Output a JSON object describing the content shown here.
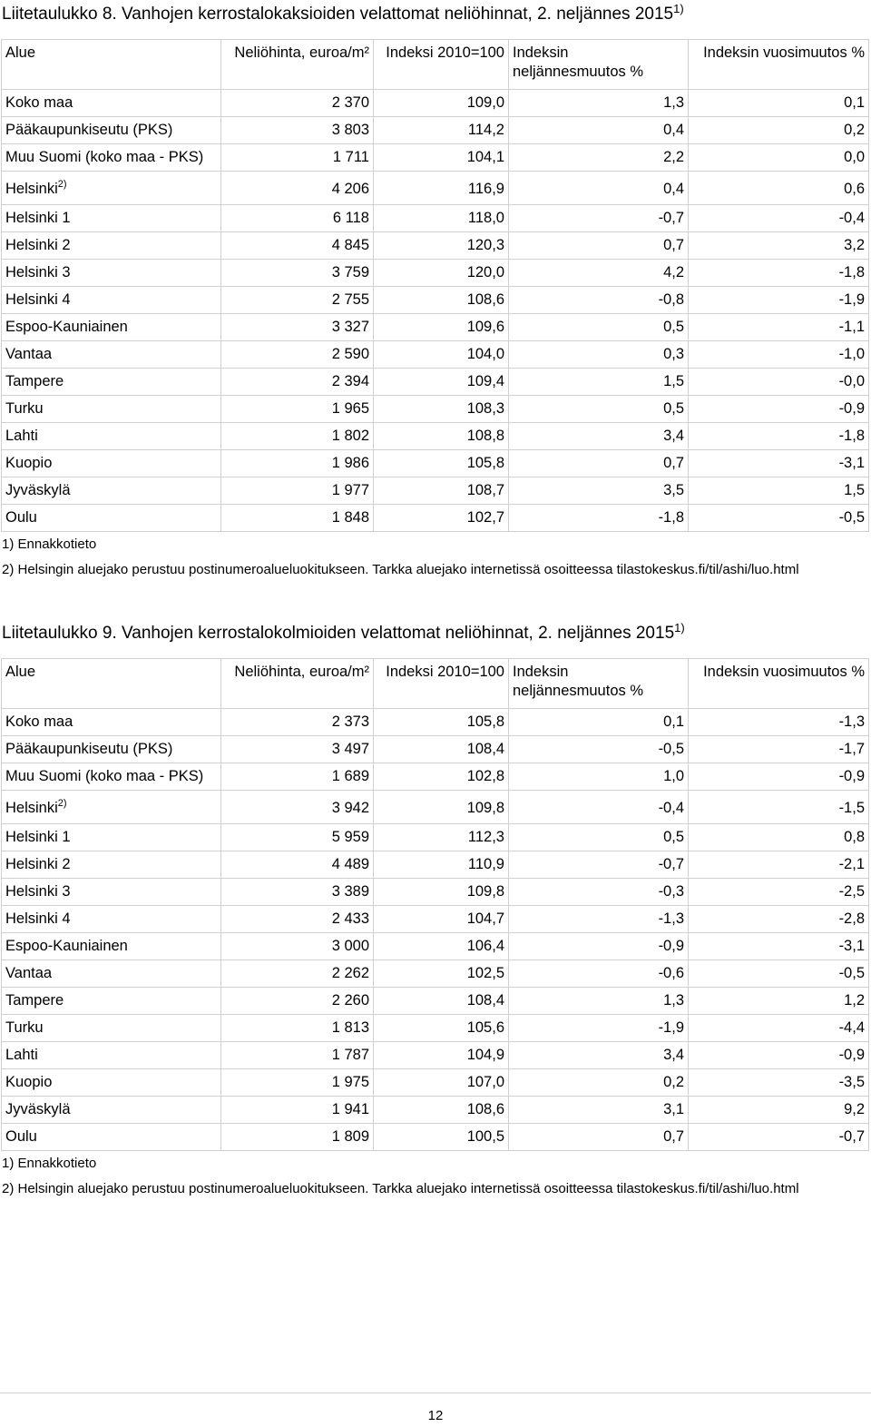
{
  "tables": [
    {
      "title": "Liitetaulukko 8. Vanhojen kerrostalokaksioiden velattomat neliöhinnat, 2. neljännes 2015",
      "title_sup": "1)",
      "headers": [
        "Alue",
        "Neliöhinta, euroa/m²",
        "Indeksi 2010=100",
        "Indeksin neljännesmuutos %",
        "Indeksin vuosimuutos %"
      ],
      "rows": [
        {
          "area": "Koko maa",
          "price": "2 370",
          "index": "109,0",
          "qchange": "1,3",
          "ychange": "0,1"
        },
        {
          "area": "Pääkaupunkiseutu (PKS)",
          "price": "3 803",
          "index": "114,2",
          "qchange": "0,4",
          "ychange": "0,2"
        },
        {
          "area": "Muu Suomi (koko maa - PKS)",
          "price": "1 711",
          "index": "104,1",
          "qchange": "2,2",
          "ychange": "0,0"
        },
        {
          "area": "Helsinki",
          "sup": "2)",
          "price": "4 206",
          "index": "116,9",
          "qchange": "0,4",
          "ychange": "0,6"
        },
        {
          "area": "Helsinki 1",
          "price": "6 118",
          "index": "118,0",
          "qchange": "-0,7",
          "ychange": "-0,4"
        },
        {
          "area": "Helsinki 2",
          "price": "4 845",
          "index": "120,3",
          "qchange": "0,7",
          "ychange": "3,2"
        },
        {
          "area": "Helsinki 3",
          "price": "3 759",
          "index": "120,0",
          "qchange": "4,2",
          "ychange": "-1,8"
        },
        {
          "area": "Helsinki 4",
          "price": "2 755",
          "index": "108,6",
          "qchange": "-0,8",
          "ychange": "-1,9"
        },
        {
          "area": "Espoo-Kauniainen",
          "price": "3 327",
          "index": "109,6",
          "qchange": "0,5",
          "ychange": "-1,1"
        },
        {
          "area": "Vantaa",
          "price": "2 590",
          "index": "104,0",
          "qchange": "0,3",
          "ychange": "-1,0"
        },
        {
          "area": "Tampere",
          "price": "2 394",
          "index": "109,4",
          "qchange": "1,5",
          "ychange": "-0,0"
        },
        {
          "area": "Turku",
          "price": "1 965",
          "index": "108,3",
          "qchange": "0,5",
          "ychange": "-0,9"
        },
        {
          "area": "Lahti",
          "price": "1 802",
          "index": "108,8",
          "qchange": "3,4",
          "ychange": "-1,8"
        },
        {
          "area": "Kuopio",
          "price": "1 986",
          "index": "105,8",
          "qchange": "0,7",
          "ychange": "-3,1"
        },
        {
          "area": "Jyväskylä",
          "price": "1 977",
          "index": "108,7",
          "qchange": "3,5",
          "ychange": "1,5"
        },
        {
          "area": "Oulu",
          "price": "1 848",
          "index": "102,7",
          "qchange": "-1,8",
          "ychange": "-0,5"
        }
      ],
      "note1": "1) Ennakkotieto",
      "note2": "2) Helsingin aluejako perustuu postinumeroalueluokitukseen. Tarkka aluejako internetissä osoitteessa tilastokeskus.fi/til/ashi/luo.html"
    },
    {
      "title": "Liitetaulukko 9. Vanhojen kerrostalokolmioiden velattomat neliöhinnat, 2. neljännes 2015",
      "title_sup": "1)",
      "headers": [
        "Alue",
        "Neliöhinta, euroa/m²",
        "Indeksi 2010=100",
        "Indeksin neljännesmuutos %",
        "Indeksin vuosimuutos %"
      ],
      "rows": [
        {
          "area": "Koko maa",
          "price": "2 373",
          "index": "105,8",
          "qchange": "0,1",
          "ychange": "-1,3"
        },
        {
          "area": "Pääkaupunkiseutu (PKS)",
          "price": "3 497",
          "index": "108,4",
          "qchange": "-0,5",
          "ychange": "-1,7"
        },
        {
          "area": "Muu Suomi (koko maa - PKS)",
          "price": "1 689",
          "index": "102,8",
          "qchange": "1,0",
          "ychange": "-0,9"
        },
        {
          "area": "Helsinki",
          "sup": "2)",
          "price": "3 942",
          "index": "109,8",
          "qchange": "-0,4",
          "ychange": "-1,5"
        },
        {
          "area": "Helsinki 1",
          "price": "5 959",
          "index": "112,3",
          "qchange": "0,5",
          "ychange": "0,8"
        },
        {
          "area": "Helsinki 2",
          "price": "4 489",
          "index": "110,9",
          "qchange": "-0,7",
          "ychange": "-2,1"
        },
        {
          "area": "Helsinki 3",
          "price": "3 389",
          "index": "109,8",
          "qchange": "-0,3",
          "ychange": "-2,5"
        },
        {
          "area": "Helsinki 4",
          "price": "2 433",
          "index": "104,7",
          "qchange": "-1,3",
          "ychange": "-2,8"
        },
        {
          "area": "Espoo-Kauniainen",
          "price": "3 000",
          "index": "106,4",
          "qchange": "-0,9",
          "ychange": "-3,1"
        },
        {
          "area": "Vantaa",
          "price": "2 262",
          "index": "102,5",
          "qchange": "-0,6",
          "ychange": "-0,5"
        },
        {
          "area": "Tampere",
          "price": "2 260",
          "index": "108,4",
          "qchange": "1,3",
          "ychange": "1,2"
        },
        {
          "area": "Turku",
          "price": "1 813",
          "index": "105,6",
          "qchange": "-1,9",
          "ychange": "-4,4"
        },
        {
          "area": "Lahti",
          "price": "1 787",
          "index": "104,9",
          "qchange": "3,4",
          "ychange": "-0,9"
        },
        {
          "area": "Kuopio",
          "price": "1 975",
          "index": "107,0",
          "qchange": "0,2",
          "ychange": "-3,5"
        },
        {
          "area": "Jyväskylä",
          "price": "1 941",
          "index": "108,6",
          "qchange": "3,1",
          "ychange": "9,2"
        },
        {
          "area": "Oulu",
          "price": "1 809",
          "index": "100,5",
          "qchange": "0,7",
          "ychange": "-0,7"
        }
      ],
      "note1": "1) Ennakkotieto",
      "note2": "2) Helsingin aluejako perustuu postinumeroalueluokitukseen. Tarkka aluejako internetissä osoitteessa tilastokeskus.fi/til/ashi/luo.html"
    }
  ],
  "page_number": "12"
}
